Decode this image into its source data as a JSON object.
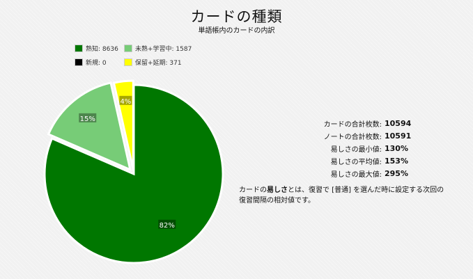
{
  "chart_data": {
    "type": "pie",
    "title": "カードの種類",
    "subtitle": "単語帳内のカードの内訳",
    "legend": [
      {
        "label": "熟知: 8636",
        "color": "#007700"
      },
      {
        "label": "未熟+学習中: 1587",
        "color": "#77cc77"
      },
      {
        "label": "新規: 0",
        "color": "#000000"
      },
      {
        "label": "保留+延期: 371",
        "color": "#ffff00"
      }
    ],
    "slices": [
      {
        "label": "熟知",
        "value": 8636,
        "percent_label": "82%",
        "color": "#007700"
      },
      {
        "label": "未熟+学習中",
        "value": 1587,
        "percent_label": "15%",
        "color": "#77cc77"
      },
      {
        "label": "新規",
        "value": 0,
        "percent_label": "",
        "color": "#000000"
      },
      {
        "label": "保留+延期",
        "value": 371,
        "percent_label": "4%",
        "color": "#ffff00"
      }
    ],
    "legend_placement": "top-left"
  },
  "stats": [
    {
      "label": "カードの合計枚数:",
      "value": "10594"
    },
    {
      "label": "ノートの合計枚数:",
      "value": "10591"
    },
    {
      "label": "易しさの最小値:",
      "value": "130%"
    },
    {
      "label": "易しさの平均値:",
      "value": "153%"
    },
    {
      "label": "易しさの最大値:",
      "value": "295%"
    }
  ],
  "note": {
    "prefix": "カードの",
    "bold": "易しさ",
    "suffix": "とは、復習で [普通] を選んだ時に設定する次回の復習間隔の相対値です。"
  }
}
